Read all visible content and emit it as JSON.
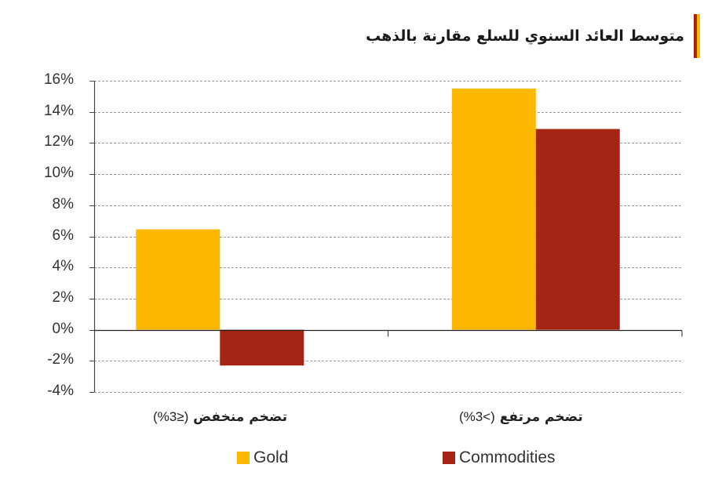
{
  "header": {
    "title": "متوسط العائد السنوي للسلع مقارنة بالذهب",
    "accent_colors": [
      "#a52413",
      "#fbb800"
    ]
  },
  "colors": {
    "gold": "#fdb900",
    "commodities": "#a52413",
    "grid": "#999999",
    "axis": "#444444"
  },
  "chart_data": {
    "type": "bar",
    "title": "متوسط العائد السنوي للسلع مقارنة بالذهب",
    "categories": [
      "(≤3%) تضخم منخفض",
      "(>3%) تضخم مرتفع"
    ],
    "category_parts": [
      {
        "arabic": "تضخم منخفض",
        "paren": "(≤3%)"
      },
      {
        "arabic": "تضخم مرتفع",
        "paren": "(>3%)"
      }
    ],
    "series": [
      {
        "name": "Gold",
        "color": "#fdb900",
        "values": [
          6.45,
          15.5
        ]
      },
      {
        "name": "Commodities",
        "color": "#a52413",
        "values": [
          -2.3,
          12.9
        ]
      }
    ],
    "xlabel": "",
    "ylabel": "",
    "ylim": [
      -4,
      16
    ],
    "yticks": [
      "16%",
      "14%",
      "12%",
      "10%",
      "8%",
      "6%",
      "4%",
      "2%",
      "0%",
      "-2%",
      "-4%"
    ],
    "ytick_values": [
      16,
      14,
      12,
      10,
      8,
      6,
      4,
      2,
      0,
      -2,
      -4
    ],
    "grid": "horizontal dashed",
    "legend_position": "bottom"
  },
  "legend": [
    {
      "label": "Gold",
      "color": "#fdb900"
    },
    {
      "label": "Commodities",
      "color": "#a52413"
    }
  ]
}
